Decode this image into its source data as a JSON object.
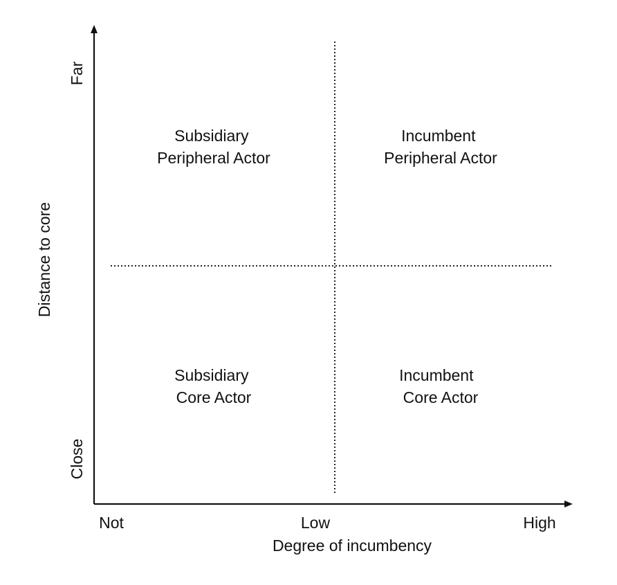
{
  "axes": {
    "x": {
      "title": "Degree of incumbency",
      "ticks": [
        "Not",
        "Low",
        "High"
      ]
    },
    "y": {
      "title": "Distance to core",
      "ticks": [
        "Far",
        "Close"
      ]
    }
  },
  "quadrants": {
    "top_left": [
      "Subsidiary",
      "Peripheral Actor"
    ],
    "top_right": [
      "Incumbent",
      "Peripheral Actor"
    ],
    "bottom_left": [
      "Subsidiary",
      "Core Actor"
    ],
    "bottom_right": [
      "Incumbent",
      "Core Actor"
    ]
  }
}
